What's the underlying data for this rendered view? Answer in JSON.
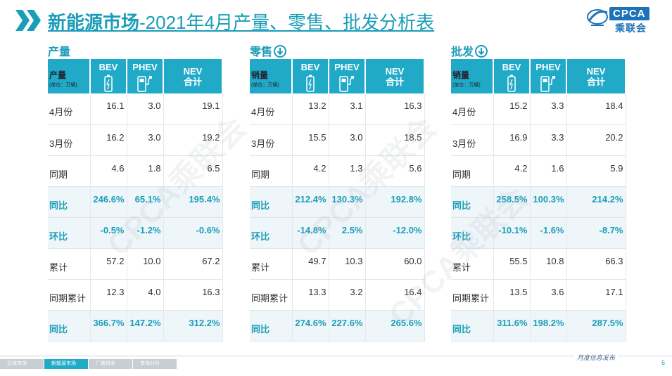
{
  "title": {
    "brand": "新能源市场",
    "rest": "-2021年4月产量、零售、批发分析表"
  },
  "logo": {
    "cpca": "CPCA",
    "cn": "乘联会"
  },
  "watermark": "CPCA乘联会",
  "columns": {
    "bev": "BEV",
    "phev": "PHEV",
    "nev_top": "NEV",
    "nev_bottom": "合计",
    "unit": "(单位：万辆)"
  },
  "panels": [
    {
      "label": "产量",
      "header": "产量",
      "has_arrow": false,
      "rows": [
        {
          "label": "4月份",
          "bev": "16.1",
          "phev": "3.0",
          "nev": "19.1",
          "hl": false
        },
        {
          "label": "3月份",
          "bev": "16.2",
          "phev": "3.0",
          "nev": "19.2",
          "hl": false
        },
        {
          "label": "同期",
          "bev": "4.6",
          "phev": "1.8",
          "nev": "6.5",
          "hl": false
        },
        {
          "label": "同比",
          "bev": "246.6%",
          "phev": "65.1%",
          "nev": "195.4%",
          "hl": true
        },
        {
          "label": "环比",
          "bev": "-0.5%",
          "phev": "-1.2%",
          "nev": "-0.6%",
          "hl": true
        },
        {
          "label": "累计",
          "bev": "57.2",
          "phev": "10.0",
          "nev": "67.2",
          "hl": false
        },
        {
          "label": "同期累计",
          "bev": "12.3",
          "phev": "4.0",
          "nev": "16.3",
          "hl": false
        },
        {
          "label": "同比",
          "bev": "366.7%",
          "phev": "147.2%",
          "nev": "312.2%",
          "hl": true
        }
      ]
    },
    {
      "label": "零售",
      "header": "销量",
      "has_arrow": true,
      "rows": [
        {
          "label": "4月份",
          "bev": "13.2",
          "phev": "3.1",
          "nev": "16.3",
          "hl": false
        },
        {
          "label": "3月份",
          "bev": "15.5",
          "phev": "3.0",
          "nev": "18.5",
          "hl": false
        },
        {
          "label": "同期",
          "bev": "4.2",
          "phev": "1.3",
          "nev": "5.6",
          "hl": false
        },
        {
          "label": "同比",
          "bev": "212.4%",
          "phev": "130.3%",
          "nev": "192.8%",
          "hl": true
        },
        {
          "label": "环比",
          "bev": "-14.8%",
          "phev": "2.5%",
          "nev": "-12.0%",
          "hl": true
        },
        {
          "label": "累计",
          "bev": "49.7",
          "phev": "10.3",
          "nev": "60.0",
          "hl": false
        },
        {
          "label": "同期累计",
          "bev": "13.3",
          "phev": "3.2",
          "nev": "16.4",
          "hl": false
        },
        {
          "label": "同比",
          "bev": "274.6%",
          "phev": "227.6%",
          "nev": "265.6%",
          "hl": true
        }
      ]
    },
    {
      "label": "批发",
      "header": "销量",
      "has_arrow": true,
      "rows": [
        {
          "label": "4月份",
          "bev": "15.2",
          "phev": "3.3",
          "nev": "18.4",
          "hl": false
        },
        {
          "label": "3月份",
          "bev": "16.9",
          "phev": "3.3",
          "nev": "20.2",
          "hl": false
        },
        {
          "label": "同期",
          "bev": "4.2",
          "phev": "1.6",
          "nev": "5.9",
          "hl": false
        },
        {
          "label": "同比",
          "bev": "258.5%",
          "phev": "100.3%",
          "nev": "214.2%",
          "hl": true
        },
        {
          "label": "环比",
          "bev": "-10.1%",
          "phev": "-1.6%",
          "nev": "-8.7%",
          "hl": true
        },
        {
          "label": "累计",
          "bev": "55.5",
          "phev": "10.8",
          "nev": "66.3",
          "hl": false
        },
        {
          "label": "同期累计",
          "bev": "13.5",
          "phev": "3.6",
          "nev": "17.1",
          "hl": false
        },
        {
          "label": "同比",
          "bev": "311.6%",
          "phev": "198.2%",
          "nev": "287.5%",
          "hl": true
        }
      ]
    }
  ],
  "footer": {
    "tabs": [
      {
        "label": "总体市场",
        "active": false
      },
      {
        "label": "新能源市场",
        "active": true
      },
      {
        "label": "厂商排名",
        "active": false
      },
      {
        "label": "市场分析",
        "active": false
      }
    ],
    "monthly": "月度信息发布",
    "page": "6"
  },
  "colors": {
    "accent": "#21aac8",
    "title": "#1a9db8",
    "highlight_bg": "#eef6fa",
    "logo": "#1e73b8"
  }
}
